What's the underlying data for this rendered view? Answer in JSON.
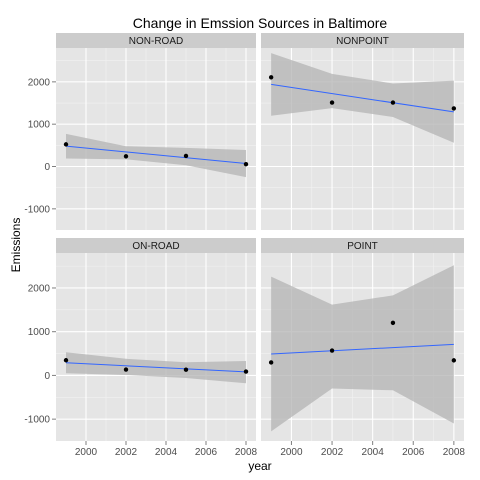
{
  "chart_data": {
    "type": "scatter",
    "title": "Change in Emssion Sources in Baltimore",
    "xlabel": "year",
    "ylabel": "Emissions",
    "xlim": [
      1998.5,
      2008.5
    ],
    "x_ticks": [
      2000,
      2002,
      2004,
      2006,
      2008
    ],
    "y_ticks": [
      -1000,
      0,
      1000,
      2000
    ],
    "ylim": [
      -1500,
      2800
    ],
    "grid": true,
    "legend": "none",
    "facets": [
      {
        "label": "NON-ROAD",
        "x": [
          1999,
          2002,
          2005,
          2008
        ],
        "y": [
          523,
          241,
          249,
          56
        ],
        "fit_line": [
          [
            1999,
            482
          ],
          [
            2008,
            70
          ]
        ],
        "confidence_band": [
          [
            1999,
            190,
            770
          ],
          [
            2002,
            170,
            480
          ],
          [
            2005,
            30,
            440
          ],
          [
            2008,
            -250,
            390
          ]
        ]
      },
      {
        "label": "NONPOINT",
        "x": [
          1999,
          2002,
          2005,
          2008
        ],
        "y": [
          2108,
          1510,
          1510,
          1373
        ],
        "fit_line": [
          [
            1999,
            1940
          ],
          [
            2008,
            1290
          ]
        ],
        "confidence_band": [
          [
            1999,
            1200,
            2680
          ],
          [
            2002,
            1380,
            2190
          ],
          [
            2005,
            1170,
            1960
          ],
          [
            2008,
            560,
            2030
          ]
        ]
      },
      {
        "label": "ON-ROAD",
        "x": [
          1999,
          2002,
          2005,
          2008
        ],
        "y": [
          347,
          134,
          131,
          88
        ],
        "fit_line": [
          [
            1999,
            290
          ],
          [
            2008,
            80
          ]
        ],
        "confidence_band": [
          [
            1999,
            50,
            530
          ],
          [
            2002,
            10,
            380
          ],
          [
            2005,
            -60,
            300
          ],
          [
            2008,
            -180,
            330
          ]
        ]
      },
      {
        "label": "POINT",
        "x": [
          1999,
          2002,
          2005,
          2008
        ],
        "y": [
          296,
          569,
          1202,
          344
        ],
        "fit_line": [
          [
            1999,
            490
          ],
          [
            2008,
            710
          ]
        ],
        "confidence_band": [
          [
            1999,
            -1280,
            2260
          ],
          [
            2002,
            -300,
            1620
          ],
          [
            2005,
            -340,
            1830
          ],
          [
            2008,
            -1100,
            2520
          ]
        ]
      }
    ],
    "colors": {
      "panel_background": "#e5e5e5",
      "grid_major": "#ffffff",
      "grid_minor": "#f2f2f2",
      "strip_background": "#cccccc",
      "fit_line": "#3366ff",
      "band": "#b3b3b3",
      "points": "#000000"
    }
  }
}
